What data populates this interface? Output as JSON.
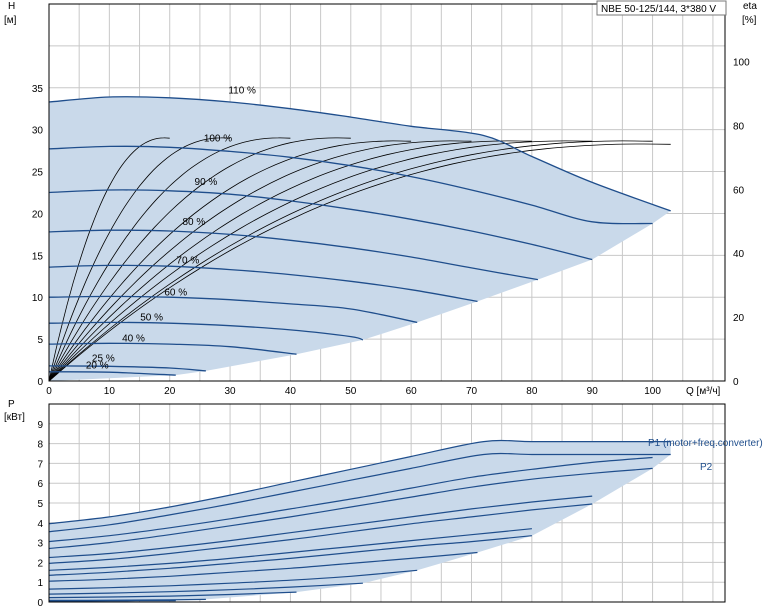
{
  "title": "NBE 50-125/144, 3*380 V",
  "colors": {
    "envelope": "#c9d9ea",
    "envelope_left": "#e8f1fb",
    "curve": "#1f4e8c",
    "eta": "#000000",
    "grid": "#c8c8c8"
  },
  "chart_data": [
    {
      "type": "line",
      "name_panel": "head",
      "xlabel": "Q [м³/ч]",
      "ylabel_line1": "H",
      "ylabel_line2": "[м]",
      "y2label_line1": "eta",
      "y2label_line2": "[%]",
      "xlim": [
        0,
        112
      ],
      "ylim": [
        0,
        45
      ],
      "y2lim": [
        0,
        100
      ],
      "x_ticks": [
        0,
        10,
        20,
        30,
        40,
        50,
        60,
        70,
        80,
        90,
        100
      ],
      "y_ticks": [
        0,
        5,
        10,
        15,
        20,
        25,
        30,
        35
      ],
      "y2_ticks": [
        0,
        20,
        40,
        60,
        80,
        100
      ],
      "grid": true,
      "series": [
        {
          "name": "110 %",
          "x": [
            0,
            10,
            20,
            30,
            40,
            50,
            60,
            72,
            80,
            90,
            103
          ],
          "y": [
            33.3,
            33.9,
            33.8,
            33.3,
            32.5,
            31.5,
            30.4,
            29.3,
            26.8,
            23.7,
            20.3
          ]
        },
        {
          "name": "100 %",
          "x": [
            0,
            10,
            20,
            30,
            40,
            50,
            60,
            70,
            80,
            90,
            100
          ],
          "y": [
            27.7,
            28.0,
            27.9,
            27.4,
            26.7,
            25.7,
            24.4,
            22.8,
            21.0,
            19.0,
            18.8
          ]
        },
        {
          "name": "90 %",
          "x": [
            0,
            10,
            20,
            30,
            40,
            50,
            60,
            70,
            80,
            90
          ],
          "y": [
            22.5,
            22.8,
            22.7,
            22.3,
            21.5,
            20.5,
            19.3,
            17.9,
            16.3,
            14.5
          ]
        },
        {
          "name": "80 %",
          "x": [
            0,
            10,
            20,
            30,
            40,
            50,
            60,
            70,
            81
          ],
          "y": [
            17.8,
            18.0,
            17.9,
            17.5,
            16.8,
            15.9,
            14.8,
            13.5,
            12.1
          ]
        },
        {
          "name": "70 %",
          "x": [
            0,
            10,
            20,
            30,
            40,
            50,
            60,
            71
          ],
          "y": [
            13.6,
            13.8,
            13.7,
            13.3,
            12.7,
            11.9,
            10.9,
            9.5
          ]
        },
        {
          "name": "60 %",
          "x": [
            0,
            10,
            20,
            30,
            40,
            50,
            61
          ],
          "y": [
            10.0,
            10.1,
            10.0,
            9.7,
            9.2,
            8.6,
            7.0
          ]
        },
        {
          "name": "50 %",
          "x": [
            0,
            10,
            20,
            30,
            40,
            50,
            52
          ],
          "y": [
            6.9,
            7.0,
            6.9,
            6.6,
            6.1,
            5.3,
            4.9
          ]
        },
        {
          "name": "40 %",
          "x": [
            0,
            10,
            20,
            30,
            41
          ],
          "y": [
            4.4,
            4.5,
            4.4,
            4.1,
            3.2
          ]
        },
        {
          "name": "25 %",
          "x": [
            0,
            10,
            20,
            26
          ],
          "y": [
            1.8,
            1.75,
            1.55,
            1.2
          ]
        },
        {
          "name": "20 %",
          "x": [
            0,
            10,
            21
          ],
          "y": [
            1.1,
            1.05,
            0.7
          ]
        }
      ],
      "speed_labels": [
        "110 %",
        "100 %",
        "90 %",
        "80 %",
        "70 %",
        "60 %",
        "50 %",
        "40 %",
        "25 %",
        "20 %"
      ],
      "efficiency_curves_peak": [
        {
          "q_max": 20,
          "eta_peak": 80
        },
        {
          "q_max": 30,
          "eta_peak": 80
        },
        {
          "q_max": 40,
          "eta_peak": 80
        },
        {
          "q_max": 50,
          "eta_peak": 80
        },
        {
          "q_max": 60,
          "eta_peak": 79
        },
        {
          "q_max": 70,
          "eta_peak": 79
        },
        {
          "q_max": 80,
          "eta_peak": 79
        },
        {
          "q_max": 90,
          "eta_peak": 79
        },
        {
          "q_max": 100,
          "eta_peak": 79
        },
        {
          "q_max": 103,
          "eta_peak": 78
        }
      ]
    },
    {
      "type": "line",
      "name_panel": "power",
      "ylabel_line1": "P",
      "ylabel_line2": "[кВт]",
      "xlim": [
        0,
        112
      ],
      "ylim": [
        0,
        10
      ],
      "y_ticks": [
        0,
        1,
        2,
        3,
        4,
        5,
        6,
        7,
        8,
        9
      ],
      "grid": true,
      "legend": [
        "P1 (motor+freq.converter)",
        "P2"
      ],
      "series": [
        {
          "name": "P1 110 %",
          "x": [
            0,
            10,
            20,
            30,
            40,
            50,
            60,
            72,
            80,
            90,
            103
          ],
          "y": [
            3.95,
            4.3,
            4.8,
            5.4,
            6.05,
            6.7,
            7.35,
            8.1,
            8.1,
            8.1,
            8.1
          ]
        },
        {
          "name": "P2 110 %",
          "x": [
            0,
            10,
            20,
            30,
            40,
            50,
            60,
            72,
            80,
            90,
            103
          ],
          "y": [
            3.55,
            3.9,
            4.4,
            4.95,
            5.55,
            6.15,
            6.75,
            7.45,
            7.45,
            7.45,
            7.45
          ]
        },
        {
          "name": "P1 100 %",
          "x": [
            0,
            10,
            20,
            30,
            40,
            50,
            60,
            70,
            80,
            90,
            100
          ],
          "y": [
            3.05,
            3.35,
            3.75,
            4.2,
            4.7,
            5.2,
            5.75,
            6.3,
            6.7,
            7.05,
            7.3
          ]
        },
        {
          "name": "P2 100 %",
          "x": [
            0,
            10,
            20,
            30,
            40,
            50,
            60,
            70,
            80,
            90,
            100
          ],
          "y": [
            2.7,
            3.0,
            3.4,
            3.85,
            4.3,
            4.8,
            5.3,
            5.8,
            6.2,
            6.5,
            6.75
          ]
        },
        {
          "name": "P1 90 %",
          "x": [
            0,
            10,
            20,
            30,
            40,
            50,
            60,
            70,
            80,
            90
          ],
          "y": [
            2.25,
            2.45,
            2.75,
            3.1,
            3.5,
            3.9,
            4.3,
            4.7,
            5.05,
            5.35
          ]
        },
        {
          "name": "P2 90 %",
          "x": [
            0,
            10,
            20,
            30,
            40,
            50,
            60,
            70,
            80,
            90
          ],
          "y": [
            1.95,
            2.15,
            2.45,
            2.8,
            3.15,
            3.55,
            3.95,
            4.3,
            4.65,
            4.95
          ]
        },
        {
          "name": "P1 80 %",
          "x": [
            0,
            10,
            20,
            30,
            40,
            50,
            60,
            70,
            80
          ],
          "y": [
            1.6,
            1.75,
            1.95,
            2.2,
            2.5,
            2.8,
            3.1,
            3.4,
            3.7
          ]
        },
        {
          "name": "P2 80 %",
          "x": [
            0,
            10,
            20,
            30,
            40,
            50,
            60,
            70,
            80
          ],
          "y": [
            1.35,
            1.5,
            1.7,
            1.95,
            2.2,
            2.5,
            2.8,
            3.05,
            3.35
          ]
        },
        {
          "name": "P1 70 %",
          "x": [
            0,
            10,
            20,
            30,
            40,
            50,
            60,
            71
          ],
          "y": [
            1.05,
            1.15,
            1.3,
            1.5,
            1.7,
            1.95,
            2.2,
            2.5
          ]
        },
        {
          "name": "P1 60 %",
          "x": [
            0,
            10,
            20,
            30,
            40,
            50,
            61
          ],
          "y": [
            0.65,
            0.72,
            0.82,
            0.95,
            1.1,
            1.3,
            1.6
          ]
        },
        {
          "name": "P1 50 %",
          "x": [
            0,
            10,
            20,
            30,
            40,
            52
          ],
          "y": [
            0.4,
            0.45,
            0.52,
            0.62,
            0.75,
            0.95
          ]
        },
        {
          "name": "P1 40 %",
          "x": [
            0,
            10,
            20,
            30,
            41
          ],
          "y": [
            0.22,
            0.25,
            0.3,
            0.38,
            0.5
          ]
        },
        {
          "name": "P1 25 %",
          "x": [
            0,
            10,
            20,
            26
          ],
          "y": [
            0.08,
            0.09,
            0.11,
            0.13
          ]
        },
        {
          "name": "P1 20 %",
          "x": [
            0,
            10,
            21
          ],
          "y": [
            0.05,
            0.06,
            0.07
          ]
        }
      ]
    }
  ]
}
